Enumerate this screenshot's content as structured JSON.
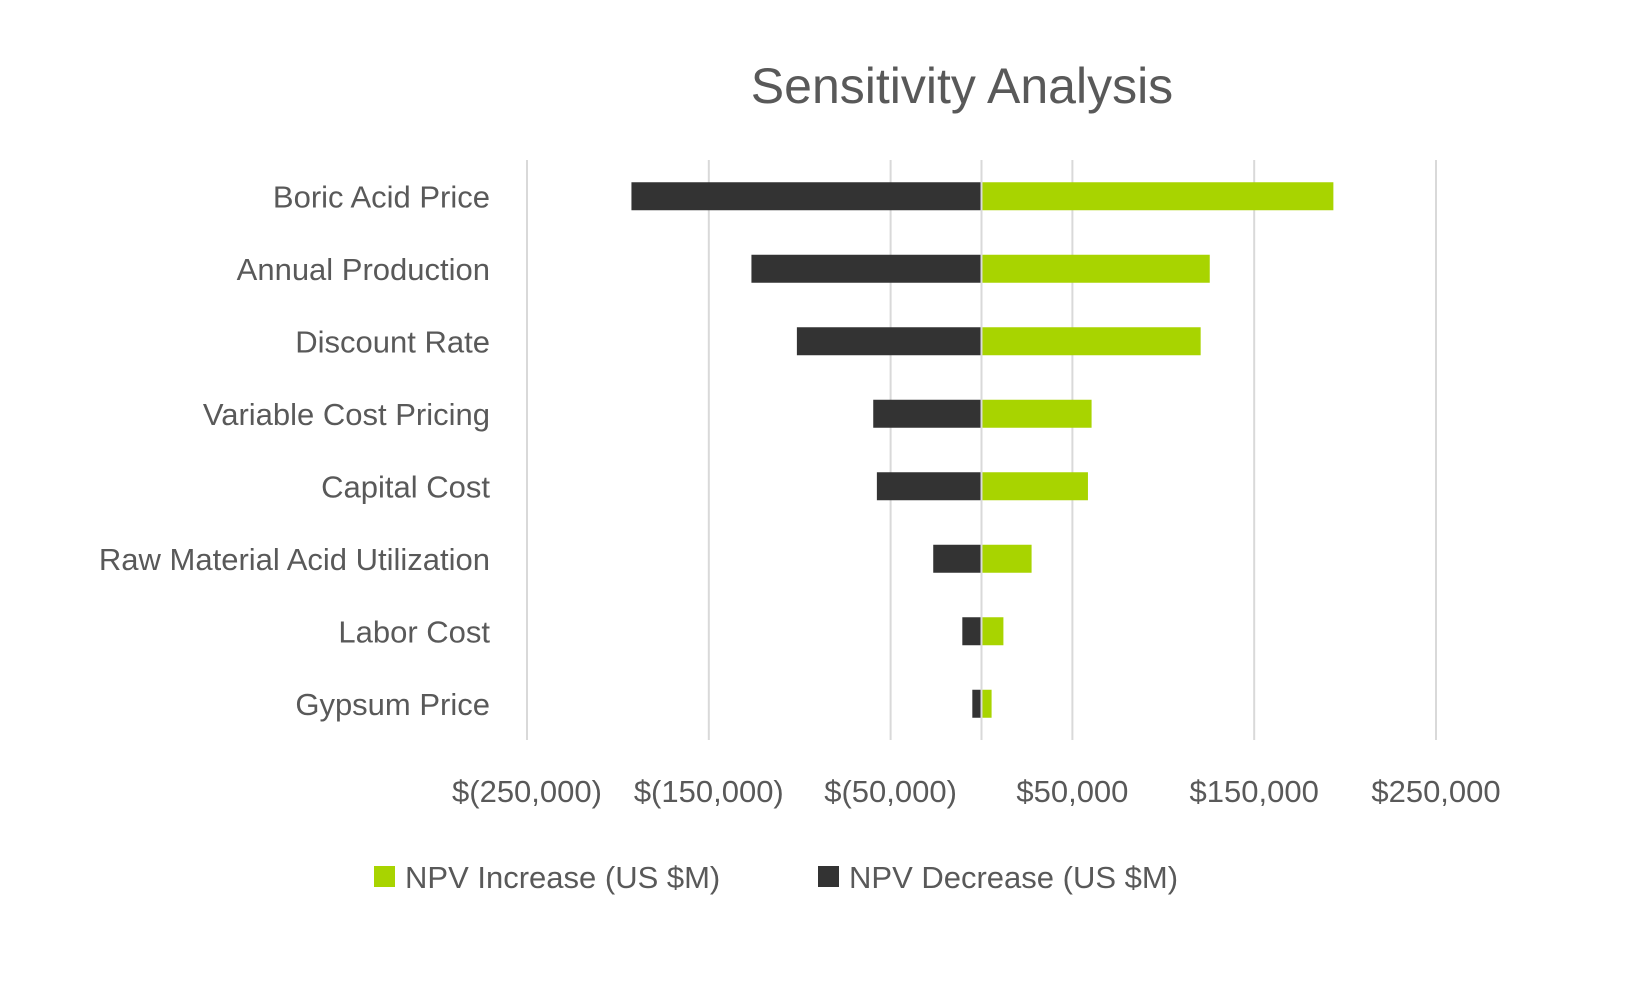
{
  "chart_data": {
    "type": "bar",
    "orientation": "horizontal",
    "stacked": "diverging",
    "title": "Sensitivity Analysis",
    "xlabel": "",
    "ylabel": "",
    "categories": [
      "Boric Acid Price",
      "Annual Production",
      "Discount Rate",
      "Variable Cost Pricing",
      "Capital Cost",
      "Raw Material Acid Utilization",
      "Labor Cost ",
      "Gypsum Price"
    ],
    "series": [
      {
        "name": "NPV Increase (US $M)",
        "color": "#A8D400",
        "values": [
          193000,
          125000,
          120000,
          60000,
          58000,
          27000,
          11500,
          5000
        ]
      },
      {
        "name": "NPV Decrease (US $M)",
        "color": "#333333",
        "values": [
          -192000,
          -126000,
          -101000,
          -59000,
          -57000,
          -26000,
          -10000,
          -4500
        ]
      }
    ],
    "xlim": [
      -250000,
      250000
    ],
    "gridlines": [
      -250000,
      -150000,
      -50000,
      0,
      50000,
      150000,
      250000
    ],
    "xticks": [
      -250000,
      -150000,
      -50000,
      50000,
      150000,
      250000
    ],
    "xtick_labels": [
      "$(250,000)",
      "$(150,000)",
      "$(50,000)",
      "$50,000",
      "$150,000",
      "$250,000"
    ],
    "grid": true,
    "legend_position": "bottom"
  }
}
